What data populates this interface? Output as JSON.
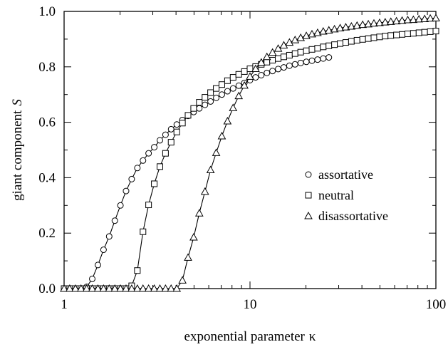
{
  "chart_data": {
    "type": "line",
    "title": "",
    "xlabel": "exponential parameter",
    "xlabel_symbol": "κ",
    "ylabel": "giant component",
    "ylabel_symbol": "S",
    "xscale": "log",
    "xlim": [
      1,
      100
    ],
    "ylim": [
      0,
      1
    ],
    "x_ticks": [
      {
        "value": 1,
        "label": "1"
      },
      {
        "value": 10,
        "label": "10"
      },
      {
        "value": 100,
        "label": "100"
      }
    ],
    "y_ticks": [
      {
        "value": 0.0,
        "label": "0.0"
      },
      {
        "value": 0.2,
        "label": "0.2"
      },
      {
        "value": 0.4,
        "label": "0.4"
      },
      {
        "value": 0.6,
        "label": "0.6"
      },
      {
        "value": 0.8,
        "label": "0.8"
      },
      {
        "value": 1.0,
        "label": "1.0"
      }
    ],
    "grid": false,
    "legend_position": "center-right",
    "series": [
      {
        "name": "assortative",
        "marker": "circle",
        "points": [
          [
            1.0,
            0.0
          ],
          [
            1.072,
            0.0
          ],
          [
            1.151,
            0.0
          ],
          [
            1.233,
            0.0
          ],
          [
            1.322,
            0.006
          ],
          [
            1.417,
            0.035
          ],
          [
            1.52,
            0.085
          ],
          [
            1.63,
            0.14
          ],
          [
            1.748,
            0.188
          ],
          [
            1.875,
            0.245
          ],
          [
            2.009,
            0.3
          ],
          [
            2.154,
            0.352
          ],
          [
            2.31,
            0.395
          ],
          [
            2.478,
            0.435
          ],
          [
            2.657,
            0.462
          ],
          [
            2.848,
            0.488
          ],
          [
            3.055,
            0.51
          ],
          [
            3.276,
            0.535
          ],
          [
            3.512,
            0.555
          ],
          [
            3.764,
            0.575
          ],
          [
            4.038,
            0.592
          ],
          [
            4.33,
            0.608
          ],
          [
            4.642,
            0.623
          ],
          [
            4.978,
            0.637
          ],
          [
            5.337,
            0.65
          ],
          [
            5.724,
            0.663
          ],
          [
            6.136,
            0.675
          ],
          [
            6.58,
            0.688
          ],
          [
            7.056,
            0.7
          ],
          [
            7.567,
            0.712
          ],
          [
            8.112,
            0.722
          ],
          [
            8.699,
            0.732
          ],
          [
            9.326,
            0.742
          ],
          [
            10.0,
            0.752
          ],
          [
            10.723,
            0.762
          ],
          [
            11.497,
            0.77
          ],
          [
            12.328,
            0.778
          ],
          [
            13.219,
            0.785
          ],
          [
            14.175,
            0.792
          ],
          [
            15.199,
            0.798
          ],
          [
            16.298,
            0.804
          ],
          [
            17.475,
            0.809
          ],
          [
            18.738,
            0.814
          ],
          [
            20.092,
            0.818
          ],
          [
            21.544,
            0.822
          ],
          [
            23.101,
            0.826
          ],
          [
            24.771,
            0.83
          ],
          [
            26.561,
            0.834
          ]
        ]
      },
      {
        "name": "neutral",
        "marker": "square",
        "points": [
          [
            1.0,
            0.0
          ],
          [
            1.072,
            0.0
          ],
          [
            1.151,
            0.0
          ],
          [
            1.233,
            0.0
          ],
          [
            1.322,
            0.0
          ],
          [
            1.417,
            0.0
          ],
          [
            1.52,
            0.0
          ],
          [
            1.63,
            0.0
          ],
          [
            1.748,
            0.0
          ],
          [
            1.875,
            0.0
          ],
          [
            2.009,
            0.0
          ],
          [
            2.154,
            0.0
          ],
          [
            2.31,
            0.01
          ],
          [
            2.478,
            0.065
          ],
          [
            2.657,
            0.205
          ],
          [
            2.848,
            0.302
          ],
          [
            3.055,
            0.378
          ],
          [
            3.276,
            0.44
          ],
          [
            3.512,
            0.488
          ],
          [
            3.764,
            0.528
          ],
          [
            4.038,
            0.565
          ],
          [
            4.33,
            0.597
          ],
          [
            4.642,
            0.625
          ],
          [
            4.978,
            0.65
          ],
          [
            5.337,
            0.672
          ],
          [
            5.724,
            0.69
          ],
          [
            6.136,
            0.707
          ],
          [
            6.58,
            0.722
          ],
          [
            7.056,
            0.736
          ],
          [
            7.567,
            0.75
          ],
          [
            8.112,
            0.762
          ],
          [
            8.699,
            0.773
          ],
          [
            9.326,
            0.783
          ],
          [
            10.0,
            0.793
          ],
          [
            10.723,
            0.801
          ],
          [
            11.497,
            0.809
          ],
          [
            12.328,
            0.817
          ],
          [
            13.219,
            0.824
          ],
          [
            14.175,
            0.83
          ],
          [
            15.199,
            0.836
          ],
          [
            16.298,
            0.842
          ],
          [
            17.475,
            0.848
          ],
          [
            18.738,
            0.853
          ],
          [
            20.092,
            0.858
          ],
          [
            21.544,
            0.863
          ],
          [
            23.101,
            0.867
          ],
          [
            24.771,
            0.872
          ],
          [
            26.561,
            0.876
          ],
          [
            28.48,
            0.88
          ],
          [
            30.539,
            0.884
          ],
          [
            32.745,
            0.888
          ],
          [
            35.112,
            0.892
          ],
          [
            37.649,
            0.896
          ],
          [
            40.37,
            0.899
          ],
          [
            43.288,
            0.902
          ],
          [
            46.416,
            0.905
          ],
          [
            49.77,
            0.908
          ],
          [
            53.367,
            0.911
          ],
          [
            57.224,
            0.913
          ],
          [
            61.359,
            0.915
          ],
          [
            65.793,
            0.917
          ],
          [
            70.548,
            0.919
          ],
          [
            75.646,
            0.921
          ],
          [
            81.113,
            0.923
          ],
          [
            86.975,
            0.925
          ],
          [
            93.26,
            0.927
          ],
          [
            100.0,
            0.929
          ]
        ]
      },
      {
        "name": "disassortative",
        "marker": "triangle",
        "points": [
          [
            1.0,
            0.0
          ],
          [
            1.072,
            0.0
          ],
          [
            1.151,
            0.0
          ],
          [
            1.233,
            0.0
          ],
          [
            1.322,
            0.0
          ],
          [
            1.417,
            0.0
          ],
          [
            1.52,
            0.0
          ],
          [
            1.63,
            0.0
          ],
          [
            1.748,
            0.0
          ],
          [
            1.875,
            0.0
          ],
          [
            2.009,
            0.0
          ],
          [
            2.154,
            0.0
          ],
          [
            2.31,
            0.0
          ],
          [
            2.478,
            0.0
          ],
          [
            2.657,
            0.0
          ],
          [
            2.848,
            0.0
          ],
          [
            3.055,
            0.0
          ],
          [
            3.276,
            0.0
          ],
          [
            3.512,
            0.0
          ],
          [
            3.764,
            0.0
          ],
          [
            4.038,
            0.0
          ],
          [
            4.33,
            0.03
          ],
          [
            4.642,
            0.112
          ],
          [
            4.978,
            0.185
          ],
          [
            5.337,
            0.272
          ],
          [
            5.724,
            0.35
          ],
          [
            6.136,
            0.428
          ],
          [
            6.58,
            0.49
          ],
          [
            7.056,
            0.55
          ],
          [
            7.567,
            0.604
          ],
          [
            8.112,
            0.652
          ],
          [
            8.699,
            0.695
          ],
          [
            9.326,
            0.733
          ],
          [
            10.0,
            0.765
          ],
          [
            10.723,
            0.793
          ],
          [
            11.497,
            0.816
          ],
          [
            12.328,
            0.836
          ],
          [
            13.219,
            0.852
          ],
          [
            14.175,
            0.866
          ],
          [
            15.199,
            0.878
          ],
          [
            16.298,
            0.888
          ],
          [
            17.475,
            0.897
          ],
          [
            18.738,
            0.905
          ],
          [
            20.092,
            0.912
          ],
          [
            21.544,
            0.918
          ],
          [
            23.101,
            0.923
          ],
          [
            24.771,
            0.928
          ],
          [
            26.561,
            0.932
          ],
          [
            28.48,
            0.936
          ],
          [
            30.539,
            0.94
          ],
          [
            32.745,
            0.943
          ],
          [
            35.112,
            0.946
          ],
          [
            37.649,
            0.949
          ],
          [
            40.37,
            0.952
          ],
          [
            43.288,
            0.954
          ],
          [
            46.416,
            0.957
          ],
          [
            49.77,
            0.959
          ],
          [
            53.367,
            0.961
          ],
          [
            57.224,
            0.963
          ],
          [
            61.359,
            0.965
          ],
          [
            65.793,
            0.967
          ],
          [
            70.548,
            0.969
          ],
          [
            75.646,
            0.97
          ],
          [
            81.113,
            0.972
          ],
          [
            86.975,
            0.973
          ],
          [
            93.26,
            0.975
          ],
          [
            100.0,
            0.976
          ]
        ]
      }
    ]
  }
}
